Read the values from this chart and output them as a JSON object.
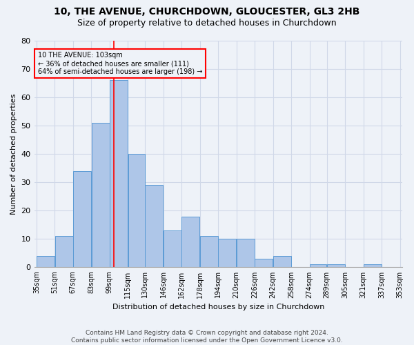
{
  "title_line1": "10, THE AVENUE, CHURCHDOWN, GLOUCESTER, GL3 2HB",
  "title_line2": "Size of property relative to detached houses in Churchdown",
  "xlabel": "Distribution of detached houses by size in Churchdown",
  "ylabel": "Number of detached properties",
  "bins": [
    35,
    51,
    67,
    83,
    99,
    115,
    130,
    146,
    162,
    178,
    194,
    210,
    226,
    242,
    258,
    274,
    289,
    305,
    321,
    337,
    353
  ],
  "values": [
    4,
    11,
    34,
    51,
    66,
    40,
    29,
    13,
    18,
    11,
    10,
    10,
    3,
    4,
    0,
    1,
    1,
    0,
    1,
    0
  ],
  "bar_color": "#aec6e8",
  "bar_edge_color": "#5b9bd5",
  "grid_color": "#d0d8e8",
  "vline_color": "red",
  "vline_x": 103,
  "annotation_text_line1": "10 THE AVENUE: 103sqm",
  "annotation_text_line2": "← 36% of detached houses are smaller (111)",
  "annotation_text_line3": "64% of semi-detached houses are larger (198) →",
  "annotation_box_color": "red",
  "ylim": [
    0,
    80
  ],
  "yticks": [
    0,
    10,
    20,
    30,
    40,
    50,
    60,
    70,
    80
  ],
  "footer_line1": "Contains HM Land Registry data © Crown copyright and database right 2024.",
  "footer_line2": "Contains public sector information licensed under the Open Government Licence v3.0.",
  "bg_color": "#eef2f8",
  "title_fontsize": 10,
  "subtitle_fontsize": 9,
  "ylabel_fontsize": 8,
  "xlabel_fontsize": 8,
  "tick_fontsize": 7,
  "footer_fontsize": 6.5
}
